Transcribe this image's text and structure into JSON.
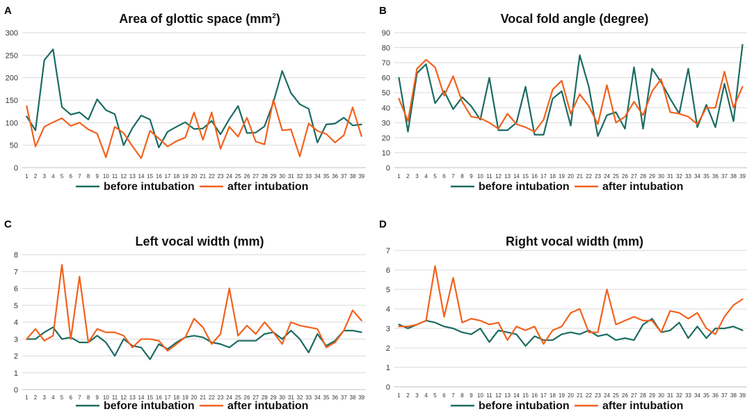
{
  "colors": {
    "before": "#1b6b62",
    "after": "#f2611d"
  },
  "legend": {
    "before": "before intubation",
    "after": "after intubation"
  },
  "chart_data": [
    {
      "type": "line",
      "panel": "A",
      "title": "Area of glottic space (mm",
      "title_sup": "2",
      "title_end": ")",
      "xlabel": "",
      "ylabel": "",
      "x": [
        1,
        2,
        3,
        4,
        5,
        6,
        7,
        8,
        9,
        10,
        11,
        12,
        13,
        14,
        15,
        16,
        17,
        18,
        19,
        20,
        21,
        22,
        23,
        24,
        25,
        26,
        27,
        28,
        29,
        30,
        31,
        32,
        33,
        34,
        35,
        36,
        37,
        38,
        39
      ],
      "ylim": [
        0,
        300
      ],
      "yticks": [
        0,
        50,
        100,
        150,
        200,
        250,
        300
      ],
      "series": [
        {
          "name": "before intubation",
          "values": [
            114,
            83,
            239,
            263,
            135,
            118,
            123,
            107,
            152,
            128,
            119,
            50,
            88,
            116,
            107,
            45,
            80,
            91,
            101,
            86,
            87,
            104,
            74,
            108,
            137,
            77,
            78,
            92,
            145,
            215,
            166,
            141,
            131,
            56,
            96,
            98,
            111,
            94,
            96
          ]
        },
        {
          "name": "after intubation",
          "values": [
            137,
            47,
            91,
            101,
            110,
            93,
            100,
            85,
            76,
            23,
            91,
            77,
            48,
            21,
            82,
            65,
            47,
            59,
            67,
            123,
            62,
            123,
            42,
            91,
            69,
            111,
            58,
            52,
            151,
            83,
            85,
            25,
            98,
            82,
            75,
            56,
            72,
            134,
            70
          ]
        }
      ]
    },
    {
      "type": "line",
      "panel": "B",
      "title": "Vocal fold angle (degree)",
      "xlabel": "",
      "ylabel": "",
      "x": [
        1,
        2,
        3,
        4,
        5,
        6,
        7,
        8,
        9,
        10,
        11,
        12,
        13,
        14,
        15,
        16,
        17,
        18,
        19,
        20,
        21,
        22,
        23,
        24,
        25,
        26,
        27,
        28,
        29,
        30,
        31,
        32,
        33,
        34,
        35,
        36,
        37,
        38,
        39
      ],
      "ylim": [
        0,
        90
      ],
      "yticks": [
        0,
        10,
        20,
        30,
        40,
        50,
        60,
        70,
        80,
        90
      ],
      "series": [
        {
          "name": "before intubation",
          "values": [
            60,
            24,
            63,
            69,
            43,
            51,
            39,
            47,
            41,
            32,
            60,
            25,
            25,
            30,
            54,
            22,
            22,
            46,
            51,
            28,
            75,
            54,
            21,
            35,
            37,
            26,
            67,
            26,
            66,
            57,
            46,
            36,
            66,
            27,
            42,
            27,
            56,
            31,
            82
          ]
        },
        {
          "name": "after intubation",
          "values": [
            46,
            31,
            66,
            72,
            67,
            48,
            61,
            44,
            34,
            33,
            30,
            26,
            36,
            29,
            27,
            24,
            32,
            52,
            58,
            36,
            49,
            41,
            29,
            55,
            30,
            34,
            44,
            35,
            51,
            59,
            37,
            36,
            34,
            29,
            40,
            40,
            64,
            40,
            54
          ]
        }
      ]
    },
    {
      "type": "line",
      "panel": "C",
      "title": "Left vocal width (mm)",
      "xlabel": "",
      "ylabel": "",
      "x": [
        1,
        2,
        3,
        4,
        5,
        6,
        7,
        8,
        9,
        10,
        11,
        12,
        13,
        14,
        15,
        16,
        17,
        18,
        19,
        20,
        21,
        22,
        23,
        24,
        25,
        26,
        27,
        28,
        29,
        30,
        31,
        32,
        33,
        34,
        35,
        36,
        37,
        38,
        39
      ],
      "ylim": [
        0,
        8
      ],
      "yticks": [
        0,
        1,
        2,
        3,
        4,
        5,
        6,
        7,
        8
      ],
      "series": [
        {
          "name": "before intubation",
          "values": [
            3.0,
            3.0,
            3.4,
            3.7,
            3.0,
            3.1,
            2.8,
            2.8,
            3.2,
            2.8,
            2.0,
            3.0,
            2.6,
            2.5,
            1.8,
            2.7,
            2.4,
            2.8,
            3.1,
            3.2,
            3.1,
            2.8,
            2.7,
            2.5,
            2.9,
            2.9,
            2.9,
            3.3,
            3.4,
            3.0,
            3.5,
            3.0,
            2.2,
            3.3,
            2.6,
            2.9,
            3.5,
            3.5,
            3.4
          ]
        },
        {
          "name": "after intubation",
          "values": [
            3.0,
            3.6,
            2.9,
            3.2,
            7.4,
            3.0,
            6.7,
            2.8,
            3.6,
            3.4,
            3.4,
            3.2,
            2.5,
            3.0,
            3.0,
            2.9,
            2.3,
            2.7,
            3.1,
            4.2,
            3.7,
            2.7,
            3.3,
            6.0,
            3.2,
            3.8,
            3.3,
            4.0,
            3.4,
            2.7,
            4.0,
            3.8,
            3.7,
            3.6,
            2.5,
            2.8,
            3.5,
            4.7,
            4.1
          ]
        }
      ]
    },
    {
      "type": "line",
      "panel": "D",
      "title": "Right vocal width (mm)",
      "xlabel": "",
      "ylabel": "",
      "x": [
        1,
        2,
        3,
        4,
        5,
        6,
        7,
        8,
        9,
        10,
        11,
        12,
        13,
        14,
        15,
        16,
        17,
        18,
        19,
        20,
        21,
        22,
        23,
        24,
        25,
        26,
        27,
        28,
        29,
        30,
        31,
        32,
        33,
        34,
        35,
        36,
        37,
        38,
        39
      ],
      "ylim": [
        0,
        7
      ],
      "yticks": [
        0,
        1,
        2,
        3,
        4,
        5,
        6,
        7
      ],
      "series": [
        {
          "name": "before intubation",
          "values": [
            3.2,
            3.0,
            3.2,
            3.4,
            3.3,
            3.1,
            3.0,
            2.8,
            2.7,
            3.0,
            2.3,
            2.9,
            2.8,
            2.7,
            2.1,
            2.6,
            2.4,
            2.4,
            2.7,
            2.8,
            2.7,
            2.9,
            2.6,
            2.7,
            2.4,
            2.5,
            2.4,
            3.2,
            3.5,
            2.8,
            2.9,
            3.3,
            2.5,
            3.1,
            2.5,
            3.0,
            3.0,
            3.1,
            2.9
          ]
        },
        {
          "name": "after intubation",
          "values": [
            3.1,
            3.1,
            3.2,
            3.4,
            6.2,
            3.6,
            5.6,
            3.3,
            3.5,
            3.4,
            3.2,
            3.3,
            2.4,
            3.1,
            2.9,
            3.1,
            2.2,
            2.9,
            3.1,
            3.8,
            4.0,
            2.8,
            2.8,
            5.0,
            3.2,
            3.4,
            3.6,
            3.4,
            3.4,
            2.8,
            3.9,
            3.8,
            3.5,
            3.8,
            3.0,
            2.7,
            3.6,
            4.2,
            4.5
          ]
        }
      ]
    }
  ]
}
